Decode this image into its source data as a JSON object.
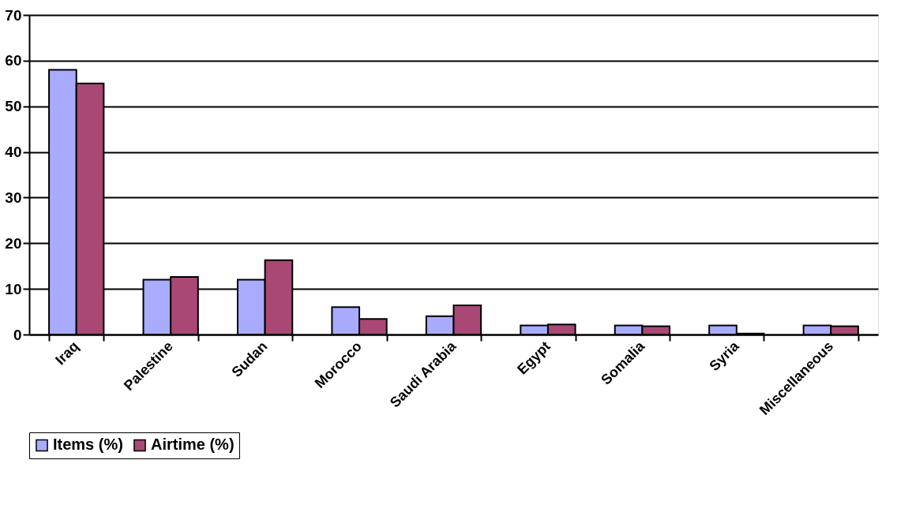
{
  "chart_data": {
    "type": "bar",
    "categories": [
      "Iraq",
      "Palestine",
      "Sudan",
      "Morocco",
      "Saudi Arabia",
      "Egypt",
      "Somalia",
      "Syria",
      "Miscellaneous"
    ],
    "series": [
      {
        "name": "Items (%)",
        "color": "#a9abff",
        "values": [
          58,
          12,
          12,
          6,
          4,
          2,
          2,
          2,
          2
        ]
      },
      {
        "name": "Airtime (%)",
        "color": "#a94874",
        "values": [
          55,
          12.6,
          16.3,
          3.4,
          6.4,
          2.2,
          1.8,
          0.2,
          1.8
        ]
      }
    ],
    "ylim": [
      0,
      70
    ],
    "yticks": [
      0,
      10,
      20,
      30,
      40,
      50,
      60,
      70
    ],
    "grid": "y",
    "legend": "bottom"
  }
}
